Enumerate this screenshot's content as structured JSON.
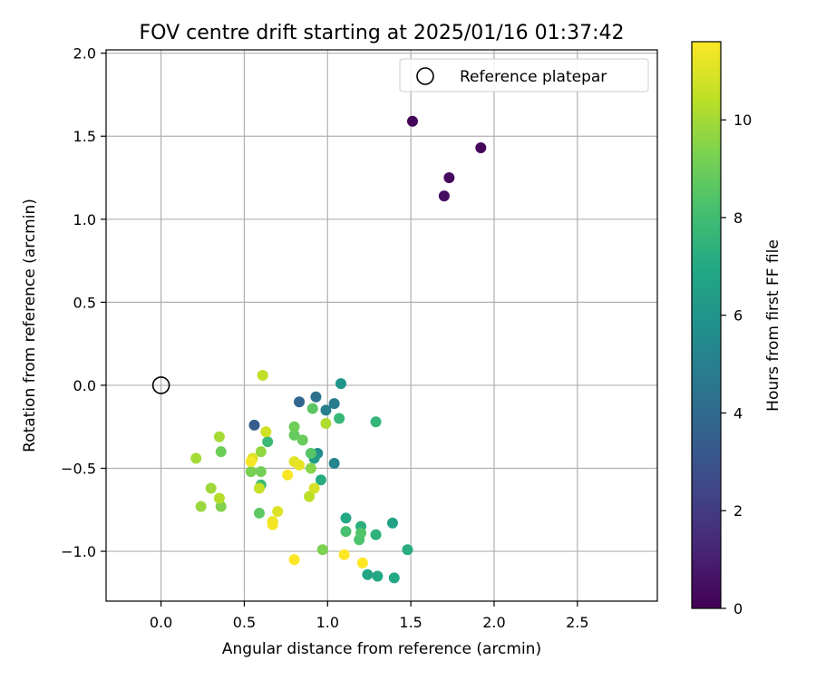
{
  "chart_data": {
    "type": "scatter",
    "title": "FOV centre drift starting at 2025/01/16 01:37:42",
    "xlabel": "Angular distance from reference (arcmin)",
    "ylabel": "Rotation from reference (arcmin)",
    "xlim": [
      -0.33,
      2.98
    ],
    "ylim": [
      -1.3,
      2.02
    ],
    "xticks": [
      "0.0",
      "0.5",
      "1.0",
      "1.5",
      "2.0",
      "2.5"
    ],
    "xtick_values": [
      0.0,
      0.5,
      1.0,
      1.5,
      2.0,
      2.5
    ],
    "yticks": [
      "−1.0",
      "−0.5",
      "0.0",
      "0.5",
      "1.0",
      "1.5",
      "2.0"
    ],
    "ytick_values": [
      -1.0,
      -0.5,
      0.0,
      0.5,
      1.0,
      1.5,
      2.0
    ],
    "grid": true,
    "legend": {
      "label": "Reference platepar",
      "placement": "top-right"
    },
    "reference_point": {
      "x": 0.0,
      "y": 0.0
    },
    "colorbar": {
      "label": "Hours from first FF file",
      "colormap": "viridis",
      "range": [
        0,
        11.6
      ],
      "ticks": [
        "0",
        "2",
        "4",
        "6",
        "8",
        "10"
      ],
      "tick_values": [
        0,
        2,
        4,
        6,
        8,
        10
      ]
    },
    "points": [
      {
        "x": 1.51,
        "y": 1.59,
        "t": 0.1
      },
      {
        "x": 1.92,
        "y": 1.43,
        "t": 0.2
      },
      {
        "x": 1.73,
        "y": 1.25,
        "t": 0.3
      },
      {
        "x": 1.7,
        "y": 1.14,
        "t": 0.4
      },
      {
        "x": 0.56,
        "y": -0.24,
        "t": 3.4
      },
      {
        "x": 0.83,
        "y": -0.1,
        "t": 3.8
      },
      {
        "x": 0.93,
        "y": -0.07,
        "t": 4.3
      },
      {
        "x": 1.04,
        "y": -0.11,
        "t": 4.8
      },
      {
        "x": 0.99,
        "y": -0.15,
        "t": 5.0
      },
      {
        "x": 1.04,
        "y": -0.47,
        "t": 5.2
      },
      {
        "x": 0.94,
        "y": -0.41,
        "t": 5.6
      },
      {
        "x": 1.08,
        "y": 0.01,
        "t": 6.0
      },
      {
        "x": 0.92,
        "y": -0.44,
        "t": 6.3
      },
      {
        "x": 1.39,
        "y": -0.83,
        "t": 6.6
      },
      {
        "x": 1.24,
        "y": -1.14,
        "t": 6.8
      },
      {
        "x": 1.3,
        "y": -1.15,
        "t": 6.9
      },
      {
        "x": 1.4,
        "y": -1.16,
        "t": 7.0
      },
      {
        "x": 1.11,
        "y": -0.8,
        "t": 7.0
      },
      {
        "x": 0.96,
        "y": -0.57,
        "t": 7.1
      },
      {
        "x": 1.48,
        "y": -0.99,
        "t": 7.2
      },
      {
        "x": 1.2,
        "y": -0.85,
        "t": 7.3
      },
      {
        "x": 1.29,
        "y": -0.9,
        "t": 7.4
      },
      {
        "x": 1.29,
        "y": -0.22,
        "t": 7.6
      },
      {
        "x": 1.07,
        "y": -0.2,
        "t": 7.7
      },
      {
        "x": 0.64,
        "y": -0.34,
        "t": 7.8
      },
      {
        "x": 0.6,
        "y": -0.6,
        "t": 7.9
      },
      {
        "x": 1.11,
        "y": -0.88,
        "t": 8.2
      },
      {
        "x": 1.19,
        "y": -0.93,
        "t": 8.3
      },
      {
        "x": 1.2,
        "y": -0.89,
        "t": 8.4
      },
      {
        "x": 0.9,
        "y": -0.41,
        "t": 8.5
      },
      {
        "x": 0.91,
        "y": -0.14,
        "t": 8.6
      },
      {
        "x": 0.59,
        "y": -0.77,
        "t": 8.7
      },
      {
        "x": 0.8,
        "y": -0.3,
        "t": 8.8
      },
      {
        "x": 0.85,
        "y": -0.33,
        "t": 8.9
      },
      {
        "x": 0.8,
        "y": -0.25,
        "t": 9.0
      },
      {
        "x": 0.36,
        "y": -0.4,
        "t": 9.0
      },
      {
        "x": 0.6,
        "y": -0.52,
        "t": 9.1
      },
      {
        "x": 0.54,
        "y": -0.52,
        "t": 9.2
      },
      {
        "x": 0.97,
        "y": -0.99,
        "t": 9.3
      },
      {
        "x": 0.36,
        "y": -0.73,
        "t": 9.4
      },
      {
        "x": 0.9,
        "y": -0.5,
        "t": 9.5
      },
      {
        "x": 0.6,
        "y": -0.4,
        "t": 9.7
      },
      {
        "x": 0.24,
        "y": -0.73,
        "t": 9.8
      },
      {
        "x": 0.3,
        "y": -0.62,
        "t": 9.9
      },
      {
        "x": 0.35,
        "y": -0.31,
        "t": 10.0
      },
      {
        "x": 0.21,
        "y": -0.44,
        "t": 10.0
      },
      {
        "x": 0.99,
        "y": -0.23,
        "t": 10.2
      },
      {
        "x": 0.35,
        "y": -0.68,
        "t": 10.3
      },
      {
        "x": 0.89,
        "y": -0.67,
        "t": 10.4
      },
      {
        "x": 0.61,
        "y": 0.06,
        "t": 10.5
      },
      {
        "x": 0.59,
        "y": -0.62,
        "t": 10.6
      },
      {
        "x": 0.63,
        "y": -0.28,
        "t": 10.8
      },
      {
        "x": 0.92,
        "y": -0.62,
        "t": 10.9
      },
      {
        "x": 0.7,
        "y": -0.76,
        "t": 11.0
      },
      {
        "x": 0.55,
        "y": -0.44,
        "t": 11.0
      },
      {
        "x": 0.8,
        "y": -0.46,
        "t": 11.1
      },
      {
        "x": 0.83,
        "y": -0.48,
        "t": 11.2
      },
      {
        "x": 0.67,
        "y": -0.82,
        "t": 11.3
      },
      {
        "x": 0.67,
        "y": -0.84,
        "t": 11.4
      },
      {
        "x": 0.54,
        "y": -0.46,
        "t": 11.5
      },
      {
        "x": 0.76,
        "y": -0.54,
        "t": 11.5
      },
      {
        "x": 0.8,
        "y": -1.05,
        "t": 11.6
      },
      {
        "x": 1.1,
        "y": -1.02,
        "t": 11.6
      },
      {
        "x": 1.21,
        "y": -1.07,
        "t": 11.6
      }
    ]
  }
}
